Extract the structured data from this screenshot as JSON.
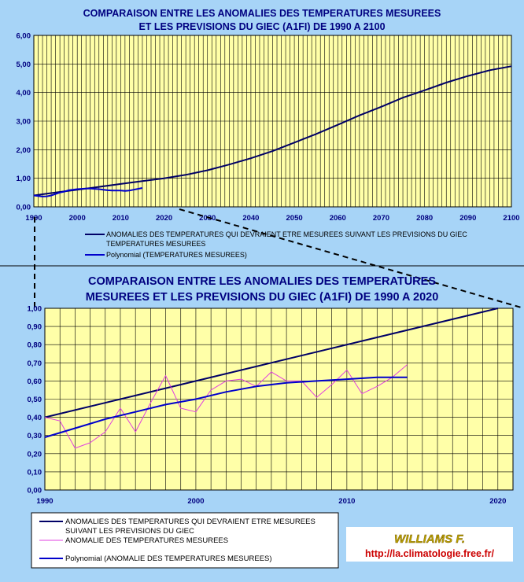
{
  "colors": {
    "background": "#A7D4F7",
    "plot_area": "#FFFFA8",
    "projection": "#000066",
    "measured": "#E040E0",
    "polynomial": "#0000CC",
    "credit": "#CC0000"
  },
  "credit": {
    "author": "WILLIAMS F.",
    "url": "http://la.climatologie.free.fr/"
  },
  "chart_data": [
    {
      "type": "line",
      "title_lines": [
        "COMPARAISON ENTRE LES ANOMALIES DES TEMPERATURES MESUREES",
        "ET LES PREVISIONS DU GIEC (A1FI) DE 1990 A 2100"
      ],
      "xlim": [
        1990,
        2100
      ],
      "ylim": [
        0,
        6
      ],
      "grid": true,
      "x_ticks": [
        "1990",
        "2000",
        "2010",
        "2020",
        "2030",
        "2040",
        "2050",
        "2060",
        "2070",
        "2080",
        "2090",
        "2100"
      ],
      "y_ticks": [
        "0,00",
        "1,00",
        "2,00",
        "3,00",
        "4,00",
        "5,00",
        "6,00"
      ],
      "legend_lines": [
        "ANOMALIES DES TEMPERATURES QUI DEVRAIENT ETRE MESUREES SUIVANT LES PREVISIONS DU GIEC",
        "TEMPERATURES MESUREES",
        "Polynomial (TEMPERATURES MESUREES)"
      ],
      "series": [
        {
          "x": [
            1990,
            1995,
            2000,
            2005,
            2010,
            2015,
            2020,
            2025,
            2030,
            2035,
            2040,
            2045,
            2050,
            2055,
            2060,
            2065,
            2070,
            2075,
            2080,
            2085,
            2090,
            2095,
            2100
          ],
          "values": [
            0.4,
            0.5,
            0.6,
            0.7,
            0.8,
            0.9,
            1.0,
            1.12,
            1.28,
            1.48,
            1.7,
            1.95,
            2.25,
            2.55,
            2.87,
            3.2,
            3.5,
            3.82,
            4.08,
            4.35,
            4.58,
            4.78,
            4.92
          ]
        },
        {
          "x": [
            1990,
            1991,
            1992,
            1993,
            1994,
            1995,
            1996,
            1997,
            1998,
            1999,
            2000,
            2001,
            2002,
            2003,
            2004,
            2005,
            2006,
            2007,
            2008,
            2009,
            2010,
            2011,
            2012,
            2013,
            2014,
            2015
          ],
          "values": [
            0.4,
            0.38,
            0.36,
            0.37,
            0.4,
            0.45,
            0.5,
            0.53,
            0.58,
            0.6,
            0.62,
            0.63,
            0.64,
            0.64,
            0.63,
            0.62,
            0.6,
            0.58,
            0.57,
            0.57,
            0.57,
            0.56,
            0.57,
            0.6,
            0.63,
            0.66
          ]
        }
      ]
    },
    {
      "type": "line",
      "title_lines": [
        "COMPARAISON ENTRE LES ANOMALIES DES TEMPERATURES",
        "MESUREES ET LES PREVISIONS DU GIEC (A1FI) DE 1990 A 2020"
      ],
      "xlim": [
        1990,
        2021
      ],
      "ylim": [
        0,
        1
      ],
      "grid": true,
      "x_ticks": [
        "1990",
        "2000",
        "2010",
        "2020"
      ],
      "y_ticks": [
        "0,00",
        "0,10",
        "0,20",
        "0,30",
        "0,40",
        "0,50",
        "0,60",
        "0,70",
        "0,80",
        "0,90",
        "1,00"
      ],
      "legend_lines": [
        "ANOMALIES DES TEMPERATURES QUI DEVRAIENT ETRE MESUREES",
        "SUIVANT LES PREVISIONS DU GIEC",
        "ANOMALIE DES TEMPERATURES MESUREES",
        "Polynomial (ANOMALIE DES TEMPERATURES MESUREES)"
      ],
      "series": [
        {
          "x": [
            1990,
            2020
          ],
          "values": [
            0.4,
            1.0
          ]
        },
        {
          "x": [
            1990,
            1991,
            1992,
            1993,
            1994,
            1995,
            1996,
            1997,
            1998,
            1999,
            2000,
            2001,
            2002,
            2003,
            2004,
            2005,
            2006,
            2007,
            2008,
            2009,
            2010,
            2011,
            2012,
            2013,
            2014
          ],
          "values": [
            0.4,
            0.38,
            0.23,
            0.26,
            0.32,
            0.45,
            0.32,
            0.48,
            0.63,
            0.45,
            0.43,
            0.55,
            0.6,
            0.61,
            0.57,
            0.65,
            0.6,
            0.6,
            0.51,
            0.58,
            0.66,
            0.53,
            0.57,
            0.62,
            0.69
          ]
        },
        {
          "x": [
            1990,
            1992,
            1994,
            1996,
            1998,
            2000,
            2002,
            2004,
            2006,
            2008,
            2010,
            2012,
            2014
          ],
          "values": [
            0.29,
            0.34,
            0.39,
            0.43,
            0.47,
            0.5,
            0.54,
            0.57,
            0.59,
            0.6,
            0.61,
            0.62,
            0.62
          ]
        }
      ]
    }
  ]
}
